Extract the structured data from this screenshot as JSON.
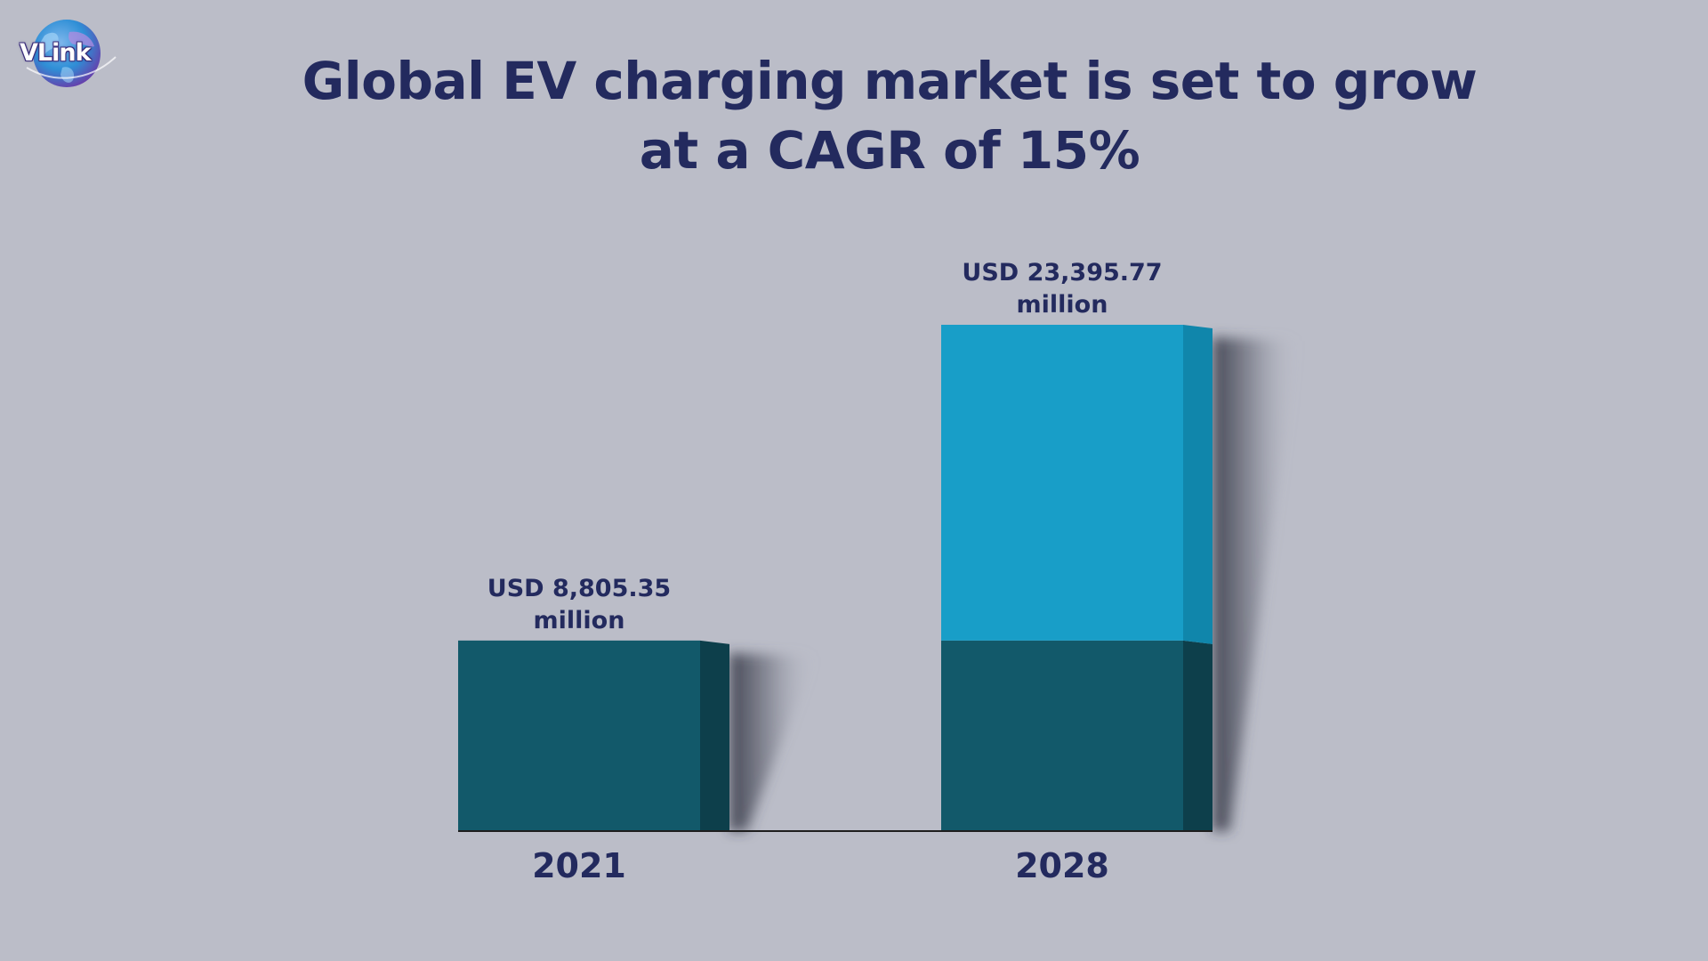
{
  "logo": {
    "text": "VLink",
    "colors": {
      "globe_blue": "#2f8fd6",
      "globe_purple": "#6a3aa8"
    }
  },
  "title": {
    "line1": "Global EV charging market is set to grow",
    "line2": "at a CAGR of 15%"
  },
  "chart_data": {
    "type": "bar",
    "title": "Global EV charging market is set to grow at a CAGR of 15%",
    "categories": [
      "2021",
      "2028"
    ],
    "values": [
      8805.35,
      23395.77
    ],
    "unit": "USD million",
    "data_labels": [
      {
        "line1": "USD 8,805.35",
        "line2": "million"
      },
      {
        "line1": "USD 23,395.77",
        "line2": "million"
      }
    ],
    "xlabel": "",
    "ylabel": "",
    "ylim": [
      0,
      23395.77
    ],
    "grid": false,
    "legend": "none",
    "style": "3d-bar",
    "colors": {
      "base": "#12596a",
      "base_side": "#0d3f4b",
      "growth": "#189ec8",
      "growth_side": "#1086ab",
      "axis": "#1e1e1e",
      "shadow": "#2c2f3d"
    }
  }
}
